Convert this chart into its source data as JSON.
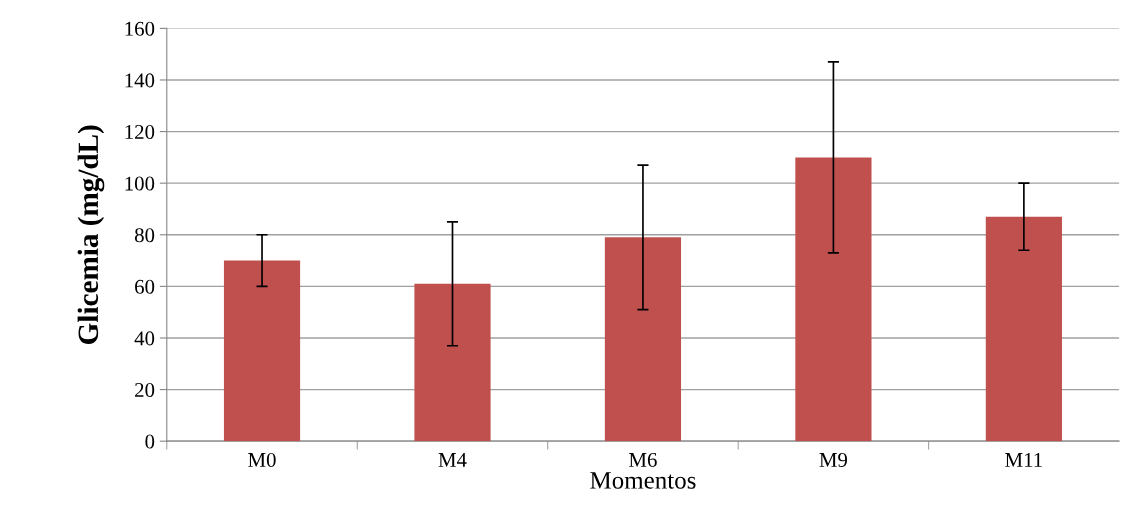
{
  "chart_data": {
    "type": "bar",
    "xlabel": "Momentos",
    "ylabel": "Glicemia (mg/dL)",
    "categories": [
      "M0",
      "M4",
      "M6",
      "M9",
      "M11"
    ],
    "values": [
      70,
      61,
      79,
      110,
      87
    ],
    "errors": [
      10,
      24,
      28,
      37,
      13
    ],
    "color": "#c0504d",
    "ylim": [
      0,
      160
    ],
    "yticks": [
      0,
      20,
      40,
      60,
      80,
      100,
      120,
      140,
      160
    ],
    "grid": "y"
  }
}
